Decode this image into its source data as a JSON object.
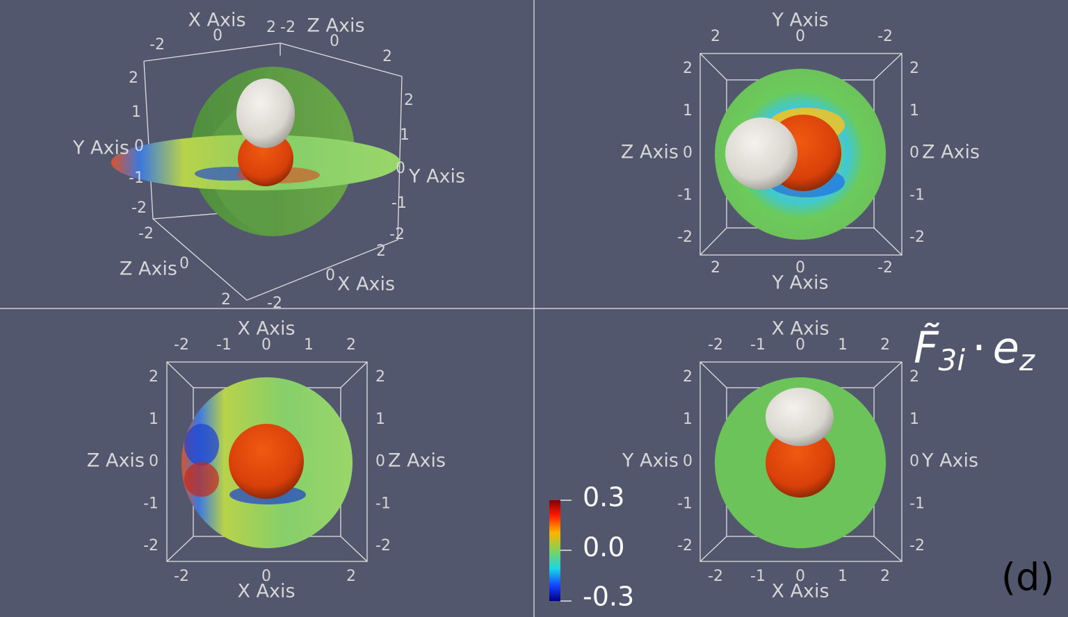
{
  "panel_3d": {
    "axis_labels": [
      "X Axis",
      "Z Axis",
      "Y Axis",
      "Y Axis",
      "Z Axis",
      "X Axis"
    ],
    "tick_labels": [
      "-2",
      "0",
      "2",
      "-2",
      "0",
      "2",
      "2",
      "1",
      "0",
      "-1",
      "-2",
      "2",
      "1",
      "0",
      "-1",
      "-2",
      "-2",
      "0",
      "2",
      "-2",
      "0",
      "2"
    ]
  },
  "panels_2d": [
    {
      "top": {
        "label": "Y Axis",
        "ticks": [
          "2",
          "0",
          "-2"
        ]
      },
      "bottom": {
        "label": "Y Axis",
        "ticks": [
          "2",
          "0",
          "-2"
        ]
      },
      "left": {
        "label": "Z Axis",
        "ticks": [
          "2",
          "1",
          "0",
          "-1",
          "-2"
        ]
      },
      "right": {
        "label": "Z Axis",
        "ticks": [
          "2",
          "1",
          "0",
          "-1",
          "-2"
        ]
      }
    },
    {
      "top": {
        "label": "X Axis",
        "ticks": [
          "-2",
          "-1",
          "0",
          "1",
          "2"
        ]
      },
      "bottom": {
        "label": "X Axis",
        "ticks": [
          "-2",
          "0",
          "2"
        ]
      },
      "left": {
        "label": "Z Axis",
        "ticks": [
          "2",
          "1",
          "0",
          "-1",
          "-2"
        ]
      },
      "right": {
        "label": "Z Axis",
        "ticks": [
          "2",
          "1",
          "0",
          "-1",
          "-2"
        ]
      }
    },
    {
      "top": {
        "label": "X Axis",
        "ticks": [
          "-2",
          "-1",
          "0",
          "1",
          "2"
        ]
      },
      "bottom": {
        "label": "X Axis",
        "ticks": [
          "-2",
          "-1",
          "0",
          "1",
          "2"
        ]
      },
      "left": {
        "label": "Y Axis",
        "ticks": [
          "2",
          "1",
          "0",
          "-1",
          "-2"
        ]
      },
      "right": {
        "label": "Y Axis",
        "ticks": [
          "2",
          "1",
          "0",
          "-1",
          "-2"
        ]
      }
    }
  ],
  "colorbar": {
    "labels": [
      "0.3",
      "0.0",
      "-0.3"
    ]
  },
  "title": {
    "symbol": "F̃",
    "subscript": "3i",
    "operator": "·",
    "vector": "e",
    "vector_subscript": "z"
  },
  "panel_tag": "(d)"
}
